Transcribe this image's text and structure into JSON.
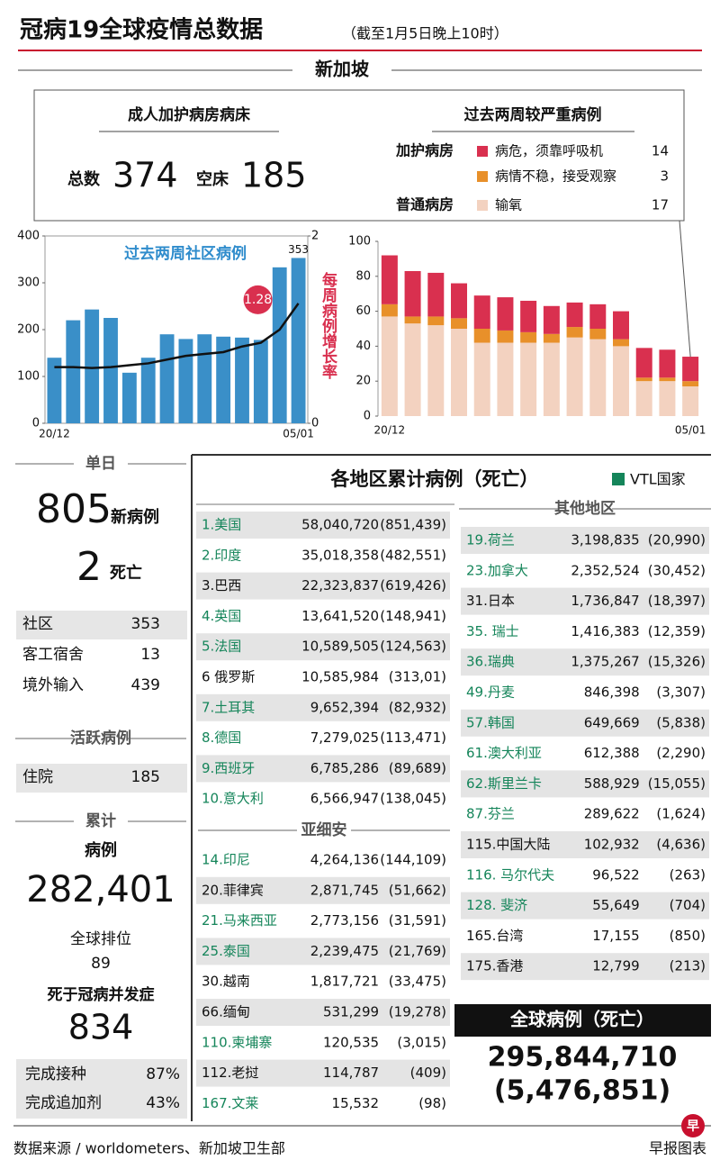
{
  "header": {
    "title": "冠病19全球疫情总数据",
    "date": "（截至1月5日晚上10时）",
    "section": "新加坡"
  },
  "icu_beds": {
    "title": "成人加护病房病床",
    "total_label": "总数",
    "total": "374",
    "empty_label": "空床",
    "empty": "185"
  },
  "severe_cases": {
    "title": "过去两周较严重病例",
    "icu_label": "加护病房",
    "general_label": "普通病房"
  },
  "chart_data": [
    {
      "type": "bar",
      "title": "过去两周社区病例",
      "y2_label": "每周病例增长率",
      "categories": [
        "20/12",
        null,
        null,
        null,
        null,
        null,
        null,
        null,
        null,
        null,
        null,
        null,
        null,
        "05/01"
      ],
      "series": [
        {
          "name": null,
          "color": "#3a8fc8",
          "values": [
            140,
            220,
            243,
            225,
            108,
            140,
            190,
            180,
            190,
            185,
            183,
            178,
            333,
            353
          ]
        },
        {
          "name": null,
          "type": "line",
          "axis": "y2",
          "color": "#111111",
          "values": [
            0.6,
            0.6,
            0.59,
            0.6,
            0.62,
            0.64,
            0.68,
            0.72,
            0.74,
            0.76,
            0.82,
            0.86,
            1.0,
            1.28
          ]
        }
      ],
      "ylim": [
        0,
        400
      ],
      "yticks": [
        0,
        100,
        200,
        300,
        400
      ],
      "y2lim": [
        0,
        2
      ],
      "y2ticks": [
        0,
        2
      ],
      "annotation_color": "#d9304f"
    },
    {
      "type": "stacked_bar",
      "categories": [
        "20/12",
        null,
        null,
        null,
        null,
        null,
        null,
        null,
        null,
        null,
        null,
        null,
        null,
        "05/01"
      ],
      "series": [
        {
          "name": "输氧",
          "color": "#f3d2c0",
          "values": [
            57,
            53,
            52,
            50,
            42,
            42,
            42,
            42,
            45,
            44,
            40,
            20,
            20,
            17
          ]
        },
        {
          "name": "病情不稳，接受观察",
          "color": "#e8902a",
          "values": [
            7,
            4,
            5,
            6,
            8,
            7,
            6,
            5,
            6,
            6,
            4,
            2,
            2,
            3
          ]
        },
        {
          "name": "病危，须靠呼吸机",
          "color": "#d9304f",
          "values": [
            28,
            26,
            25,
            20,
            19,
            19,
            18,
            16,
            14,
            14,
            16,
            17,
            16,
            14
          ]
        }
      ],
      "ylim": [
        0,
        100
      ],
      "yticks": [
        0,
        20,
        40,
        60,
        80,
        100
      ]
    }
  ],
  "daily": {
    "heading": "单日",
    "new_cases": "805",
    "new_cases_label": "新病例",
    "deaths": "2",
    "deaths_label": "死亡",
    "breakdown": [
      {
        "label": "社区",
        "value": "353"
      },
      {
        "label": "客工宿舍",
        "value": "13"
      },
      {
        "label": "境外输入",
        "value": "439"
      }
    ]
  },
  "active": {
    "heading": "活跃病例",
    "label": "住院",
    "value": "185"
  },
  "cumulative": {
    "heading": "累计",
    "cases_label": "病例",
    "cases": "282,401",
    "rank_label": "全球排位",
    "rank": "89",
    "deaths_label": "死于冠病并发症",
    "deaths": "834",
    "vaccination": [
      {
        "label": "完成接种",
        "value": "87%"
      },
      {
        "label": "完成追加剂",
        "value": "43%"
      }
    ]
  },
  "table": {
    "title": "各地区累计病例（死亡）",
    "vtl_legend": "VTL国家",
    "vtl_color": "#15855a",
    "top": [
      {
        "name": "1.美国",
        "cases": "58,040,720",
        "deaths": "(851,439)",
        "vtl": true
      },
      {
        "name": "2.印度",
        "cases": "35,018,358",
        "deaths": "(482,551)",
        "vtl": true
      },
      {
        "name": "3.巴西",
        "cases": "22,323,837",
        "deaths": "(619,426)",
        "vtl": false
      },
      {
        "name": "4.英国",
        "cases": "13,641,520",
        "deaths": "(148,941)",
        "vtl": true
      },
      {
        "name": "5.法国",
        "cases": "10,589,505",
        "deaths": "(124,563)",
        "vtl": true
      },
      {
        "name": "6 俄罗斯",
        "cases": "10,585,984",
        "deaths": "(313,01)",
        "vtl": false
      },
      {
        "name": "7.土耳其",
        "cases": "9,652,394",
        "deaths": "(82,932)",
        "vtl": true
      },
      {
        "name": "8.德国",
        "cases": "7,279,025",
        "deaths": "(113,471)",
        "vtl": true
      },
      {
        "name": "9.西班牙",
        "cases": "6,785,286",
        "deaths": "(89,689)",
        "vtl": true
      },
      {
        "name": "10.意大利",
        "cases": "6,566,947",
        "deaths": "(138,045)",
        "vtl": true
      }
    ],
    "asean": {
      "heading": "亚细安",
      "rows": [
        {
          "name": "14.印尼",
          "cases": "4,264,136",
          "deaths": "(144,109)",
          "vtl": true
        },
        {
          "name": "20.菲律宾",
          "cases": "2,871,745",
          "deaths": "(51,662)",
          "vtl": false
        },
        {
          "name": "21.马来西亚",
          "cases": "2,773,156",
          "deaths": "(31,591)",
          "vtl": true
        },
        {
          "name": "25.泰国",
          "cases": "2,239,475",
          "deaths": "(21,769)",
          "vtl": true
        },
        {
          "name": "30.越南",
          "cases": "1,817,721",
          "deaths": "(33,475)",
          "vtl": false
        },
        {
          "name": "66.缅甸",
          "cases": "531,299",
          "deaths": "(19,278)",
          "vtl": false
        },
        {
          "name": "110.柬埔寨",
          "cases": "120,535",
          "deaths": "(3,015)",
          "vtl": true
        },
        {
          "name": "112.老挝",
          "cases": "114,787",
          "deaths": "(409)",
          "vtl": false
        },
        {
          "name": "167.文莱",
          "cases": "15,532",
          "deaths": "(98)",
          "vtl": true
        }
      ]
    },
    "others": {
      "heading": "其他地区",
      "rows": [
        {
          "name": "19.荷兰",
          "cases": "3,198,835",
          "deaths": "(20,990)",
          "vtl": true
        },
        {
          "name": "23.加拿大",
          "cases": "2,352,524",
          "deaths": "(30,452)",
          "vtl": true
        },
        {
          "name": "31.日本",
          "cases": "1,736,847",
          "deaths": "(18,397)",
          "vtl": false
        },
        {
          "name": "35. 瑞士",
          "cases": "1,416,383",
          "deaths": "(12,359)",
          "vtl": true
        },
        {
          "name": "36.瑞典",
          "cases": "1,375,267",
          "deaths": "(15,326)",
          "vtl": true
        },
        {
          "name": "49.丹麦",
          "cases": "846,398",
          "deaths": "(3,307)",
          "vtl": true
        },
        {
          "name": "57.韩国",
          "cases": "649,669",
          "deaths": "(5,838)",
          "vtl": true
        },
        {
          "name": "61.澳大利亚",
          "cases": "612,388",
          "deaths": "(2,290)",
          "vtl": true
        },
        {
          "name": "62.斯里兰卡",
          "cases": "588,929",
          "deaths": "(15,055)",
          "vtl": true
        },
        {
          "name": "87.芬兰",
          "cases": "289,622",
          "deaths": "(1,624)",
          "vtl": true
        },
        {
          "name": "115.中国大陆",
          "cases": "102,932",
          "deaths": "(4,636)",
          "vtl": false
        },
        {
          "name": "116. 马尔代夫",
          "cases": "96,522",
          "deaths": "(263)",
          "vtl": true
        },
        {
          "name": "128. 斐济",
          "cases": "55,649",
          "deaths": "(704)",
          "vtl": true
        },
        {
          "name": "165.台湾",
          "cases": "17,155",
          "deaths": "(850)",
          "vtl": false
        },
        {
          "name": "175.香港",
          "cases": "12,799",
          "deaths": "(213)",
          "vtl": false
        }
      ]
    }
  },
  "global": {
    "title": "全球病例（死亡）",
    "cases": "295,844,710",
    "deaths": "(5,476,851)"
  },
  "footer": {
    "source": "数据来源 / worldometers、新加坡卫生部",
    "credit": "早报图表",
    "logo": "早"
  }
}
